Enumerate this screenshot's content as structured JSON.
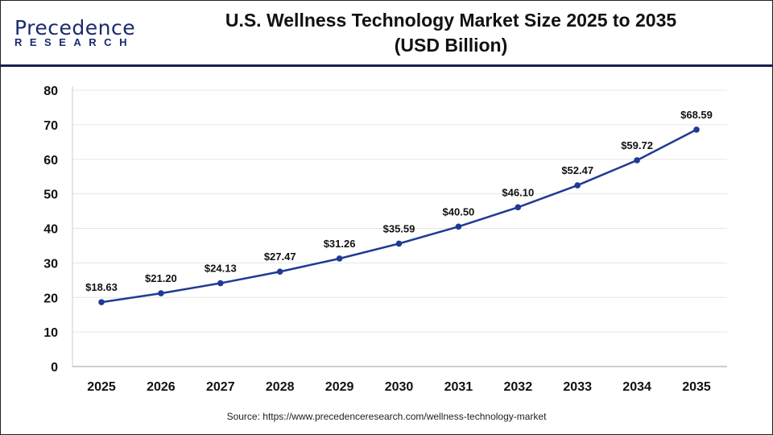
{
  "logo": {
    "main": "Precedence",
    "sub": "RESEARCH"
  },
  "title_line1": "U.S. Wellness Technology Market Size 2025 to 2035",
  "title_line2": "(USD Billion)",
  "source": "Source: https://www.precedenceresearch.com/wellness-technology-market",
  "chart_data": {
    "type": "line",
    "title": "U.S. Wellness Technology Market Size 2025 to 2035 (USD Billion)",
    "categories": [
      "2025",
      "2026",
      "2027",
      "2028",
      "2029",
      "2030",
      "2031",
      "2032",
      "2033",
      "2034",
      "2035"
    ],
    "values": [
      18.63,
      21.2,
      24.13,
      27.47,
      31.26,
      35.59,
      40.5,
      46.1,
      52.47,
      59.72,
      68.59
    ],
    "labels": [
      "$18.63",
      "$21.20",
      "$24.13",
      "$27.47",
      "$31.26",
      "$35.59",
      "$40.50",
      "$46.10",
      "$52.47",
      "$59.72",
      "$68.59"
    ],
    "ylim": [
      0,
      80
    ],
    "yticks": [
      "0",
      "10",
      "20",
      "30",
      "40",
      "50",
      "60",
      "70",
      "80"
    ],
    "grid": true,
    "line_color": "#1f3a93"
  }
}
